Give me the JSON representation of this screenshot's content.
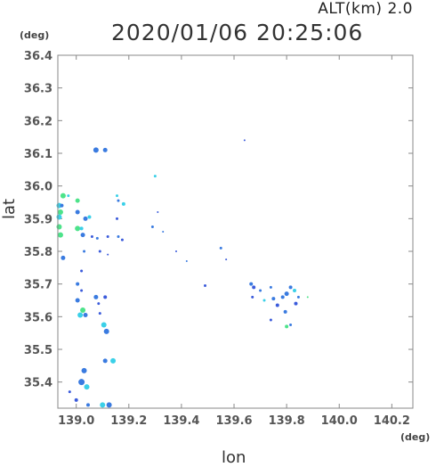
{
  "header": {
    "altitude": "ALT(km) 2.0",
    "timestamp": "2020/01/06 20:25:06"
  },
  "chart_data": {
    "type": "scatter",
    "title": "2020/01/06 20:25:06",
    "subtitle": "ALT(km) 2.0",
    "xlabel": "lon",
    "ylabel": "lat",
    "x_unit": "(deg)",
    "y_unit": "(deg)",
    "xlim": [
      138.93,
      140.28
    ],
    "ylim": [
      35.32,
      36.4
    ],
    "x_ticks": [
      139.0,
      139.2,
      139.4,
      139.6,
      139.8,
      140.0,
      140.2
    ],
    "x_tick_labels": [
      "139.0",
      "139.2",
      "139.4",
      "139.6",
      "139.8",
      "140.0",
      "140.2"
    ],
    "y_ticks": [
      35.4,
      35.5,
      35.6,
      35.7,
      35.8,
      35.9,
      36.0,
      36.1,
      36.2,
      36.3,
      36.4
    ],
    "y_tick_labels": [
      "35.4",
      "35.5",
      "35.6",
      "35.7",
      "35.8",
      "35.9",
      "36.0",
      "36.1",
      "36.2",
      "36.3",
      "36.4"
    ],
    "grid": false,
    "colors": {
      "frame": "#888888",
      "blue": "#3b5bdb",
      "royal": "#3a7be0",
      "cyan": "#3ad0e8",
      "green": "#4de38a"
    },
    "points": [
      {
        "x": 139.075,
        "y": 36.11,
        "c": "royal",
        "s": 3
      },
      {
        "x": 139.11,
        "y": 36.11,
        "c": "royal",
        "s": 2.5
      },
      {
        "x": 139.64,
        "y": 36.14,
        "c": "blue",
        "s": 1
      },
      {
        "x": 139.3,
        "y": 36.03,
        "c": "cyan",
        "s": 1.5
      },
      {
        "x": 138.95,
        "y": 35.97,
        "c": "green",
        "s": 3
      },
      {
        "x": 138.97,
        "y": 35.97,
        "c": "cyan",
        "s": 1.5
      },
      {
        "x": 139.005,
        "y": 35.955,
        "c": "green",
        "s": 2.5
      },
      {
        "x": 138.935,
        "y": 35.94,
        "c": "cyan",
        "s": 3
      },
      {
        "x": 138.945,
        "y": 35.94,
        "c": "royal",
        "s": 2
      },
      {
        "x": 138.94,
        "y": 35.92,
        "c": "green",
        "s": 3
      },
      {
        "x": 139.005,
        "y": 35.92,
        "c": "royal",
        "s": 2.5
      },
      {
        "x": 138.935,
        "y": 35.905,
        "c": "cyan",
        "s": 3
      },
      {
        "x": 139.035,
        "y": 35.9,
        "c": "royal",
        "s": 2.5
      },
      {
        "x": 139.05,
        "y": 35.905,
        "c": "cyan",
        "s": 2
      },
      {
        "x": 138.935,
        "y": 35.875,
        "c": "green",
        "s": 3
      },
      {
        "x": 139.005,
        "y": 35.87,
        "c": "green",
        "s": 3
      },
      {
        "x": 139.02,
        "y": 35.87,
        "c": "cyan",
        "s": 2
      },
      {
        "x": 138.94,
        "y": 35.85,
        "c": "green",
        "s": 3
      },
      {
        "x": 139.025,
        "y": 35.85,
        "c": "royal",
        "s": 2.5
      },
      {
        "x": 139.06,
        "y": 35.845,
        "c": "blue",
        "s": 1.5
      },
      {
        "x": 139.08,
        "y": 35.84,
        "c": "royal",
        "s": 1.5
      },
      {
        "x": 139.12,
        "y": 35.845,
        "c": "blue",
        "s": 1.5
      },
      {
        "x": 139.155,
        "y": 35.97,
        "c": "cyan",
        "s": 1.5
      },
      {
        "x": 139.16,
        "y": 35.955,
        "c": "royal",
        "s": 1.5
      },
      {
        "x": 139.18,
        "y": 35.945,
        "c": "cyan",
        "s": 2
      },
      {
        "x": 139.155,
        "y": 35.9,
        "c": "blue",
        "s": 1.5
      },
      {
        "x": 139.16,
        "y": 35.845,
        "c": "royal",
        "s": 1.5
      },
      {
        "x": 139.175,
        "y": 35.835,
        "c": "blue",
        "s": 1.5
      },
      {
        "x": 139.29,
        "y": 35.875,
        "c": "royal",
        "s": 1.5
      },
      {
        "x": 139.33,
        "y": 35.86,
        "c": "royal",
        "s": 1
      },
      {
        "x": 139.31,
        "y": 35.92,
        "c": "blue",
        "s": 1
      },
      {
        "x": 138.95,
        "y": 35.78,
        "c": "royal",
        "s": 2.5
      },
      {
        "x": 139.03,
        "y": 35.8,
        "c": "royal",
        "s": 1.5
      },
      {
        "x": 139.09,
        "y": 35.8,
        "c": "blue",
        "s": 1.5
      },
      {
        "x": 139.12,
        "y": 35.79,
        "c": "blue",
        "s": 1
      },
      {
        "x": 139.38,
        "y": 35.8,
        "c": "blue",
        "s": 1
      },
      {
        "x": 139.42,
        "y": 35.77,
        "c": "royal",
        "s": 1
      },
      {
        "x": 139.55,
        "y": 35.81,
        "c": "royal",
        "s": 1.5
      },
      {
        "x": 139.57,
        "y": 35.775,
        "c": "blue",
        "s": 1
      },
      {
        "x": 139.02,
        "y": 35.74,
        "c": "blue",
        "s": 1.5
      },
      {
        "x": 139.005,
        "y": 35.7,
        "c": "royal",
        "s": 2
      },
      {
        "x": 139.02,
        "y": 35.68,
        "c": "blue",
        "s": 1.5
      },
      {
        "x": 139.075,
        "y": 35.66,
        "c": "royal",
        "s": 2.5
      },
      {
        "x": 139.11,
        "y": 35.66,
        "c": "blue",
        "s": 2
      },
      {
        "x": 139.005,
        "y": 35.65,
        "c": "royal",
        "s": 2.5
      },
      {
        "x": 139.085,
        "y": 35.64,
        "c": "blue",
        "s": 1.5
      },
      {
        "x": 139.025,
        "y": 35.62,
        "c": "green",
        "s": 3
      },
      {
        "x": 139.015,
        "y": 35.605,
        "c": "cyan",
        "s": 3
      },
      {
        "x": 139.035,
        "y": 35.605,
        "c": "royal",
        "s": 2.5
      },
      {
        "x": 139.105,
        "y": 35.575,
        "c": "cyan",
        "s": 3
      },
      {
        "x": 139.115,
        "y": 35.555,
        "c": "royal",
        "s": 3
      },
      {
        "x": 139.09,
        "y": 35.61,
        "c": "blue",
        "s": 1.5
      },
      {
        "x": 139.49,
        "y": 35.695,
        "c": "blue",
        "s": 1.5
      },
      {
        "x": 139.665,
        "y": 35.7,
        "c": "royal",
        "s": 2
      },
      {
        "x": 139.675,
        "y": 35.69,
        "c": "blue",
        "s": 2
      },
      {
        "x": 139.7,
        "y": 35.68,
        "c": "royal",
        "s": 1.5
      },
      {
        "x": 139.67,
        "y": 35.66,
        "c": "blue",
        "s": 1.5
      },
      {
        "x": 139.715,
        "y": 35.65,
        "c": "cyan",
        "s": 1.5
      },
      {
        "x": 139.74,
        "y": 35.69,
        "c": "royal",
        "s": 1.5
      },
      {
        "x": 139.75,
        "y": 35.655,
        "c": "royal",
        "s": 2
      },
      {
        "x": 139.765,
        "y": 35.635,
        "c": "blue",
        "s": 2
      },
      {
        "x": 139.785,
        "y": 35.66,
        "c": "royal",
        "s": 2
      },
      {
        "x": 139.8,
        "y": 35.67,
        "c": "royal",
        "s": 2.5
      },
      {
        "x": 139.815,
        "y": 35.69,
        "c": "royal",
        "s": 2
      },
      {
        "x": 139.83,
        "y": 35.68,
        "c": "cyan",
        "s": 2
      },
      {
        "x": 139.835,
        "y": 35.64,
        "c": "blue",
        "s": 2
      },
      {
        "x": 139.845,
        "y": 35.66,
        "c": "royal",
        "s": 1.5
      },
      {
        "x": 139.795,
        "y": 35.615,
        "c": "royal",
        "s": 2
      },
      {
        "x": 139.74,
        "y": 35.59,
        "c": "blue",
        "s": 1.5
      },
      {
        "x": 139.8,
        "y": 35.57,
        "c": "green",
        "s": 2
      },
      {
        "x": 139.815,
        "y": 35.575,
        "c": "royal",
        "s": 1.5
      },
      {
        "x": 139.88,
        "y": 35.66,
        "c": "green",
        "s": 1
      },
      {
        "x": 139.11,
        "y": 35.465,
        "c": "royal",
        "s": 2.5
      },
      {
        "x": 139.14,
        "y": 35.465,
        "c": "cyan",
        "s": 3
      },
      {
        "x": 139.03,
        "y": 35.435,
        "c": "royal",
        "s": 3
      },
      {
        "x": 139.02,
        "y": 35.4,
        "c": "royal",
        "s": 3.5
      },
      {
        "x": 139.04,
        "y": 35.385,
        "c": "cyan",
        "s": 3
      },
      {
        "x": 138.975,
        "y": 35.37,
        "c": "blue",
        "s": 1.5
      },
      {
        "x": 139.0,
        "y": 35.345,
        "c": "blue",
        "s": 2
      },
      {
        "x": 139.045,
        "y": 35.33,
        "c": "royal",
        "s": 2
      },
      {
        "x": 139.1,
        "y": 35.33,
        "c": "cyan",
        "s": 3
      },
      {
        "x": 139.125,
        "y": 35.33,
        "c": "royal",
        "s": 3
      }
    ]
  }
}
